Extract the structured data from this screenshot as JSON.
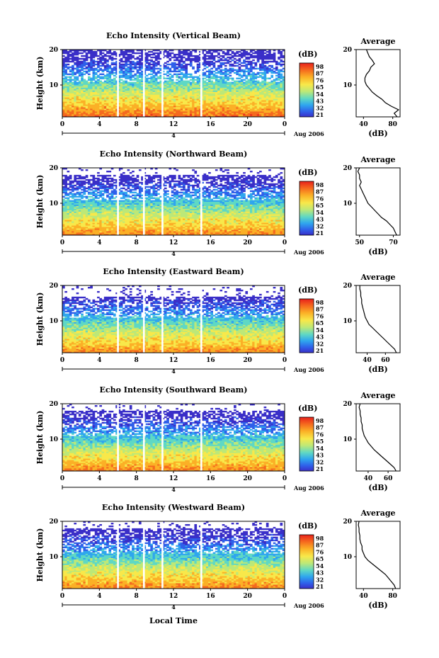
{
  "figure": {
    "xlabel_bottom": "Local Time",
    "date_label": "Aug 2006",
    "day_marker": "4"
  },
  "colorbar": {
    "unit": "(dB)",
    "ticks": [
      "98",
      "87",
      "76",
      "65",
      "54",
      "43",
      "32",
      "21"
    ],
    "colors": [
      "#e8211b",
      "#f56a1e",
      "#fbb026",
      "#f8e84a",
      "#bce878",
      "#5fd8c4",
      "#2fa6ee",
      "#2f60ea",
      "#3a2fc8"
    ]
  },
  "chart_data": [
    {
      "type": "heatmap",
      "title": "Echo Intensity (Vertical Beam)",
      "ylabel": "Height (km)",
      "xlim": [
        0,
        24
      ],
      "ylim": [
        1,
        20
      ],
      "x_ticks": [
        "0",
        "4",
        "8",
        "12",
        "16",
        "20",
        "0"
      ],
      "y_ticks": [
        "20",
        "10"
      ],
      "data_gaps_hours": [
        6.0,
        8.8,
        10.8,
        15.0
      ],
      "top_km": 20,
      "strong_layer_km": [
        2,
        6
      ]
    },
    {
      "type": "line",
      "title": "Average",
      "xlabel": "(dB)",
      "x_ticks": [
        "40",
        "80"
      ],
      "y_ticks": [
        "20",
        "10"
      ],
      "xlim": [
        30,
        90
      ],
      "ylim": [
        1,
        20
      ],
      "height_km": [
        1,
        2,
        3,
        4,
        5,
        6,
        7,
        8,
        9,
        10,
        11,
        12,
        13,
        14,
        15,
        16,
        17,
        18,
        19,
        20
      ],
      "values_db": [
        86,
        82,
        88,
        78,
        70,
        65,
        58,
        52,
        48,
        44,
        42,
        42,
        44,
        48,
        50,
        55,
        52,
        48,
        46,
        44
      ]
    },
    {
      "type": "heatmap",
      "title": "Echo Intensity (Northward Beam)",
      "ylabel": "Height (km)",
      "xlim": [
        0,
        24
      ],
      "ylim": [
        1,
        20
      ],
      "x_ticks": [
        "0",
        "4",
        "8",
        "12",
        "16",
        "20",
        "0"
      ],
      "y_ticks": [
        "20",
        "10"
      ],
      "data_gaps_hours": [
        6.0,
        8.8,
        10.8,
        15.0
      ],
      "top_km": 18,
      "strong_layer_km": [
        1,
        5
      ]
    },
    {
      "type": "line",
      "title": "Average",
      "xlabel": "(dB)",
      "x_ticks": [
        "50",
        "70"
      ],
      "y_ticks": [
        "20",
        "10"
      ],
      "xlim": [
        48,
        74
      ],
      "ylim": [
        1,
        20
      ],
      "height_km": [
        1,
        2,
        3,
        4,
        5,
        6,
        7,
        8,
        9,
        10,
        11,
        12,
        13,
        14,
        15,
        16,
        17,
        18,
        19,
        20
      ],
      "values_db": [
        72,
        71,
        70,
        68,
        66,
        63,
        61,
        59,
        57,
        55,
        54,
        53,
        52,
        51,
        50,
        51,
        50,
        50,
        49,
        50
      ]
    },
    {
      "type": "heatmap",
      "title": "Echo Intensity (Eastward Beam)",
      "ylabel": "Height (km)",
      "xlim": [
        0,
        24
      ],
      "ylim": [
        1,
        20
      ],
      "x_ticks": [
        "0",
        "4",
        "8",
        "12",
        "16",
        "20",
        "0"
      ],
      "y_ticks": [
        "20",
        "10"
      ],
      "data_gaps_hours": [
        6.0,
        8.8,
        10.8,
        15.0
      ],
      "top_km": 17,
      "strong_layer_km": [
        1,
        5
      ]
    },
    {
      "type": "line",
      "title": "Average",
      "xlabel": "(dB)",
      "x_ticks": [
        "40",
        "60"
      ],
      "y_ticks": [
        "20",
        "10"
      ],
      "xlim": [
        28,
        76
      ],
      "ylim": [
        1,
        20
      ],
      "height_km": [
        1,
        2,
        3,
        4,
        5,
        6,
        7,
        8,
        9,
        10,
        11,
        12,
        13,
        14,
        15,
        16,
        17,
        18,
        19,
        20
      ],
      "values_db": [
        72,
        70,
        66,
        62,
        58,
        54,
        50,
        46,
        42,
        40,
        38,
        37,
        36,
        35,
        34,
        34,
        33,
        33,
        32,
        32
      ]
    },
    {
      "type": "heatmap",
      "title": "Echo Intensity (Southward Beam)",
      "ylabel": "Height (km)",
      "xlim": [
        0,
        24
      ],
      "ylim": [
        1,
        20
      ],
      "x_ticks": [
        "0",
        "4",
        "8",
        "12",
        "16",
        "20",
        "0"
      ],
      "y_ticks": [
        "20",
        "10"
      ],
      "data_gaps_hours": [
        6.0,
        8.8,
        10.8,
        15.0
      ],
      "top_km": 18,
      "strong_layer_km": [
        1,
        5
      ]
    },
    {
      "type": "line",
      "title": "Average",
      "xlabel": "(dB)",
      "x_ticks": [
        "40",
        "60"
      ],
      "y_ticks": [
        "20",
        "10"
      ],
      "xlim": [
        28,
        72
      ],
      "ylim": [
        1,
        20
      ],
      "height_km": [
        1,
        2,
        3,
        4,
        5,
        6,
        7,
        8,
        9,
        10,
        11,
        12,
        13,
        14,
        15,
        16,
        17,
        18,
        19,
        20
      ],
      "values_db": [
        68,
        66,
        62,
        58,
        54,
        50,
        46,
        43,
        40,
        38,
        36,
        35,
        34,
        34,
        33,
        33,
        32,
        32,
        31,
        32
      ]
    },
    {
      "type": "heatmap",
      "title": "Echo Intensity (Westward Beam)",
      "ylabel": "Height (km)",
      "xlim": [
        0,
        24
      ],
      "ylim": [
        1,
        20
      ],
      "x_ticks": [
        "0",
        "4",
        "8",
        "12",
        "16",
        "20",
        "0"
      ],
      "y_ticks": [
        "20",
        "10"
      ],
      "data_gaps_hours": [
        6.0,
        8.8,
        10.8,
        15.0
      ],
      "top_km": 18,
      "strong_layer_km": [
        1,
        5
      ]
    },
    {
      "type": "line",
      "title": "Average",
      "xlabel": "(dB)",
      "x_ticks": [
        "40",
        "80"
      ],
      "y_ticks": [
        "20",
        "10"
      ],
      "xlim": [
        30,
        90
      ],
      "ylim": [
        1,
        20
      ],
      "height_km": [
        1,
        2,
        3,
        4,
        5,
        6,
        7,
        8,
        9,
        10,
        11,
        12,
        13,
        14,
        15,
        16,
        17,
        18,
        19,
        20
      ],
      "values_db": [
        84,
        82,
        78,
        74,
        70,
        64,
        58,
        52,
        46,
        42,
        40,
        38,
        38,
        36,
        35,
        35,
        34,
        34,
        33,
        34
      ]
    }
  ]
}
